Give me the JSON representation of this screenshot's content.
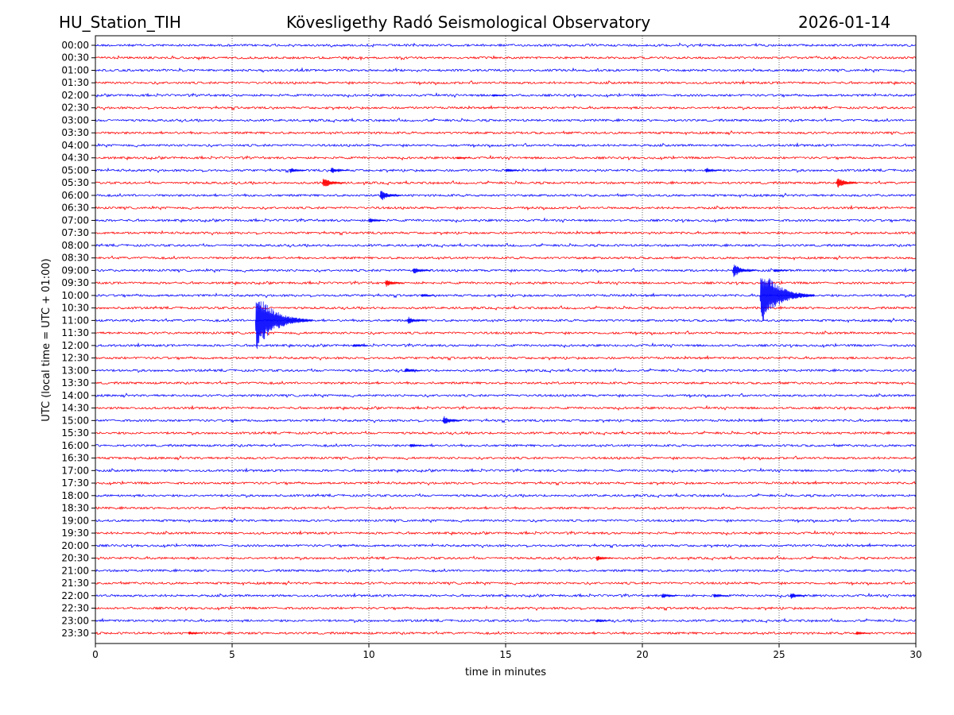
{
  "header": {
    "station": "HU_Station_TIH",
    "title": "Kövesligethy Radó Seismological Observatory",
    "date": "2026-01-14"
  },
  "chart_data": {
    "type": "line",
    "subtype": "helicorder",
    "title": "Kövesligethy Radó Seismological Observatory",
    "xlabel": "time in minutes",
    "ylabel": "UTC (local time = UTC + 01:00)",
    "xlim": [
      0,
      30
    ],
    "xticks": [
      "0",
      "5",
      "10",
      "15",
      "20",
      "25",
      "30"
    ],
    "grid": "vertical dotted at every 5 minutes",
    "colors": {
      "even_rows": "#0000ff",
      "odd_rows": "#ff0000",
      "axes": "#000000"
    },
    "rows": [
      "00:00",
      "00:30",
      "01:00",
      "01:30",
      "02:00",
      "02:30",
      "03:00",
      "03:30",
      "04:00",
      "04:30",
      "05:00",
      "05:30",
      "06:00",
      "06:30",
      "07:00",
      "07:30",
      "08:00",
      "08:30",
      "09:00",
      "09:30",
      "10:00",
      "10:30",
      "11:00",
      "11:30",
      "12:00",
      "12:30",
      "13:00",
      "13:30",
      "14:00",
      "14:30",
      "15:00",
      "15:30",
      "16:00",
      "16:30",
      "17:00",
      "17:30",
      "18:00",
      "18:30",
      "19:00",
      "19:30",
      "20:00",
      "20:30",
      "21:00",
      "21:30",
      "22:00",
      "22:30",
      "23:00",
      "23:30"
    ],
    "events_note": "amplitude in units of row spacing",
    "events": [
      {
        "row": "02:00",
        "minute": 14.5,
        "amplitude": 0.15
      },
      {
        "row": "04:30",
        "minute": 13.2,
        "amplitude": 0.15
      },
      {
        "row": "05:00",
        "minute": 7.1,
        "amplitude": 0.3
      },
      {
        "row": "05:00",
        "minute": 8.6,
        "amplitude": 0.35
      },
      {
        "row": "05:00",
        "minute": 15.0,
        "amplitude": 0.2
      },
      {
        "row": "05:00",
        "minute": 22.3,
        "amplitude": 0.3
      },
      {
        "row": "05:30",
        "minute": 8.3,
        "amplitude": 0.6
      },
      {
        "row": "05:30",
        "minute": 27.1,
        "amplitude": 0.6
      },
      {
        "row": "06:00",
        "minute": 10.4,
        "amplitude": 0.6
      },
      {
        "row": "07:00",
        "minute": 10.0,
        "amplitude": 0.3
      },
      {
        "row": "09:00",
        "minute": 11.6,
        "amplitude": 0.4
      },
      {
        "row": "09:00",
        "minute": 23.3,
        "amplitude": 0.7
      },
      {
        "row": "09:00",
        "minute": 24.8,
        "amplitude": 0.2
      },
      {
        "row": "09:30",
        "minute": 10.6,
        "amplitude": 0.4
      },
      {
        "row": "10:00",
        "minute": 11.9,
        "amplitude": 0.2
      },
      {
        "row": "10:00",
        "minute": 24.3,
        "amplitude": 2.5
      },
      {
        "row": "11:00",
        "minute": 5.85,
        "amplitude": 2.6
      },
      {
        "row": "11:00",
        "minute": 11.4,
        "amplitude": 0.4
      },
      {
        "row": "12:00",
        "minute": 9.4,
        "amplitude": 0.25
      },
      {
        "row": "13:00",
        "minute": 11.3,
        "amplitude": 0.3
      },
      {
        "row": "15:00",
        "minute": 12.7,
        "amplitude": 0.5
      },
      {
        "row": "16:00",
        "minute": 11.5,
        "amplitude": 0.2
      },
      {
        "row": "20:30",
        "minute": 18.3,
        "amplitude": 0.3
      },
      {
        "row": "22:00",
        "minute": 20.7,
        "amplitude": 0.3
      },
      {
        "row": "22:00",
        "minute": 22.6,
        "amplitude": 0.25
      },
      {
        "row": "22:00",
        "minute": 25.4,
        "amplitude": 0.35
      },
      {
        "row": "23:00",
        "minute": 18.3,
        "amplitude": 0.2
      },
      {
        "row": "23:30",
        "minute": 3.4,
        "amplitude": 0.2
      },
      {
        "row": "23:30",
        "minute": 27.8,
        "amplitude": 0.2
      }
    ]
  }
}
